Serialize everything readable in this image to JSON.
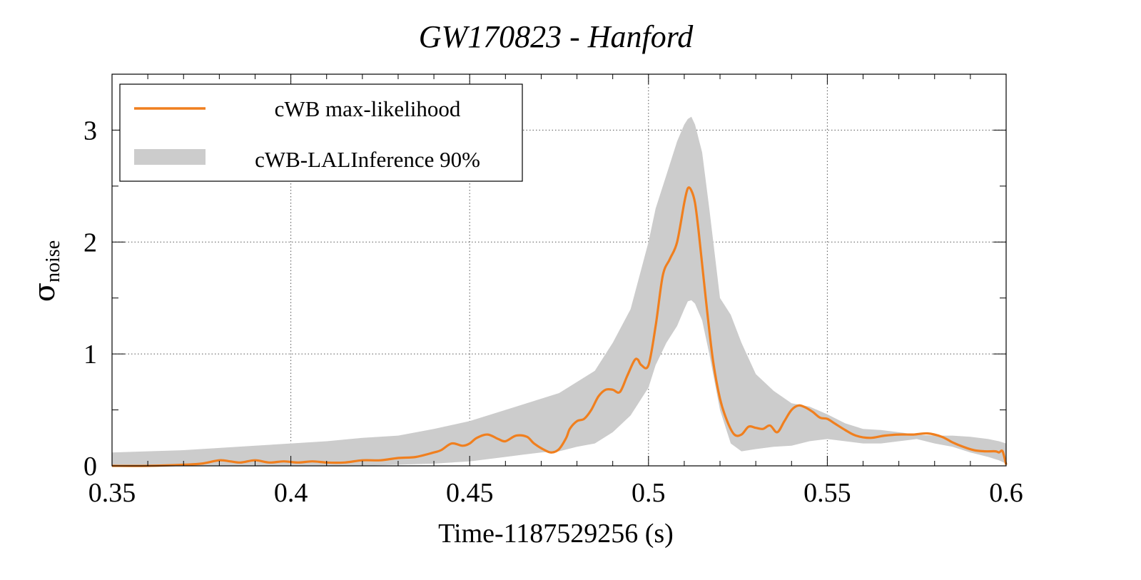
{
  "chart_data": {
    "type": "line",
    "title": "GW170823 - Hanford",
    "xlabel": "Time-1187529256 (s)",
    "ylabel": {
      "symbol": "σ",
      "subscript": "noise"
    },
    "xlim": [
      0.35,
      0.6
    ],
    "ylim": [
      0,
      3.5
    ],
    "xticks": [
      0.35,
      0.4,
      0.45,
      0.5,
      0.55,
      0.6
    ],
    "xtick_labels": [
      "0.35",
      "0.4",
      "0.45",
      "0.5",
      "0.55",
      "0.6"
    ],
    "yticks": [
      0,
      1,
      2,
      3
    ],
    "ytick_labels": [
      "0",
      "1",
      "2",
      "3"
    ],
    "grid": true,
    "legend_position": "top-left",
    "colors": {
      "line": "#f07f1e",
      "band": "#cccccc"
    },
    "series": [
      {
        "name": "cWB max-likelihood",
        "kind": "line",
        "x": [
          0.35,
          0.36,
          0.37,
          0.375,
          0.38,
          0.383,
          0.386,
          0.39,
          0.394,
          0.398,
          0.402,
          0.406,
          0.41,
          0.415,
          0.42,
          0.425,
          0.43,
          0.435,
          0.44,
          0.442,
          0.445,
          0.448,
          0.45,
          0.452,
          0.455,
          0.458,
          0.46,
          0.463,
          0.466,
          0.468,
          0.471,
          0.473,
          0.475,
          0.477,
          0.478,
          0.48,
          0.482,
          0.484,
          0.486,
          0.488,
          0.49,
          0.492,
          0.494,
          0.496,
          0.497,
          0.498,
          0.5,
          0.502,
          0.504,
          0.506,
          0.508,
          0.51,
          0.511,
          0.512,
          0.513,
          0.514,
          0.516,
          0.518,
          0.52,
          0.522,
          0.524,
          0.526,
          0.528,
          0.53,
          0.532,
          0.534,
          0.536,
          0.538,
          0.54,
          0.542,
          0.544,
          0.546,
          0.548,
          0.55,
          0.552,
          0.555,
          0.558,
          0.562,
          0.566,
          0.57,
          0.574,
          0.578,
          0.582,
          0.585,
          0.588,
          0.591,
          0.594,
          0.597,
          0.598,
          0.599,
          0.6
        ],
        "y": [
          0.0,
          0.0,
          0.01,
          0.02,
          0.05,
          0.04,
          0.03,
          0.05,
          0.03,
          0.04,
          0.03,
          0.04,
          0.03,
          0.03,
          0.05,
          0.05,
          0.07,
          0.08,
          0.12,
          0.14,
          0.2,
          0.18,
          0.2,
          0.25,
          0.28,
          0.24,
          0.22,
          0.27,
          0.26,
          0.2,
          0.14,
          0.12,
          0.15,
          0.25,
          0.33,
          0.4,
          0.42,
          0.5,
          0.62,
          0.68,
          0.68,
          0.66,
          0.8,
          0.94,
          0.95,
          0.9,
          0.9,
          1.25,
          1.7,
          1.85,
          2.0,
          2.35,
          2.48,
          2.46,
          2.35,
          2.1,
          1.5,
          0.95,
          0.6,
          0.4,
          0.28,
          0.28,
          0.35,
          0.34,
          0.33,
          0.36,
          0.3,
          0.4,
          0.5,
          0.54,
          0.52,
          0.48,
          0.43,
          0.42,
          0.38,
          0.32,
          0.27,
          0.25,
          0.27,
          0.28,
          0.28,
          0.29,
          0.26,
          0.21,
          0.17,
          0.14,
          0.13,
          0.13,
          0.12,
          0.13,
          0.01
        ]
      },
      {
        "name": "cWB-LALInference 90%",
        "kind": "band",
        "x": [
          0.35,
          0.36,
          0.37,
          0.38,
          0.39,
          0.4,
          0.41,
          0.42,
          0.43,
          0.44,
          0.45,
          0.46,
          0.465,
          0.47,
          0.475,
          0.48,
          0.485,
          0.49,
          0.495,
          0.5,
          0.502,
          0.505,
          0.508,
          0.51,
          0.511,
          0.512,
          0.513,
          0.515,
          0.517,
          0.52,
          0.523,
          0.526,
          0.53,
          0.535,
          0.54,
          0.545,
          0.55,
          0.555,
          0.56,
          0.565,
          0.57,
          0.575,
          0.58,
          0.585,
          0.59,
          0.595,
          0.598,
          0.6
        ],
        "lower": [
          0.0,
          0.0,
          0.0,
          0.0,
          0.0,
          0.0,
          0.0,
          0.0,
          0.01,
          0.02,
          0.04,
          0.08,
          0.1,
          0.12,
          0.13,
          0.17,
          0.2,
          0.3,
          0.45,
          0.7,
          0.9,
          1.1,
          1.25,
          1.4,
          1.47,
          1.48,
          1.45,
          1.3,
          1.0,
          0.5,
          0.2,
          0.13,
          0.15,
          0.17,
          0.18,
          0.22,
          0.24,
          0.22,
          0.2,
          0.2,
          0.22,
          0.24,
          0.2,
          0.17,
          0.12,
          0.08,
          0.05,
          0.02
        ],
        "upper": [
          0.12,
          0.13,
          0.14,
          0.16,
          0.18,
          0.2,
          0.22,
          0.25,
          0.27,
          0.33,
          0.4,
          0.5,
          0.55,
          0.6,
          0.65,
          0.75,
          0.85,
          1.1,
          1.4,
          2.0,
          2.3,
          2.6,
          2.9,
          3.05,
          3.1,
          3.12,
          3.05,
          2.8,
          2.3,
          1.5,
          1.35,
          1.1,
          0.82,
          0.67,
          0.56,
          0.53,
          0.46,
          0.38,
          0.33,
          0.32,
          0.3,
          0.28,
          0.27,
          0.27,
          0.26,
          0.24,
          0.22,
          0.2
        ]
      }
    ]
  }
}
